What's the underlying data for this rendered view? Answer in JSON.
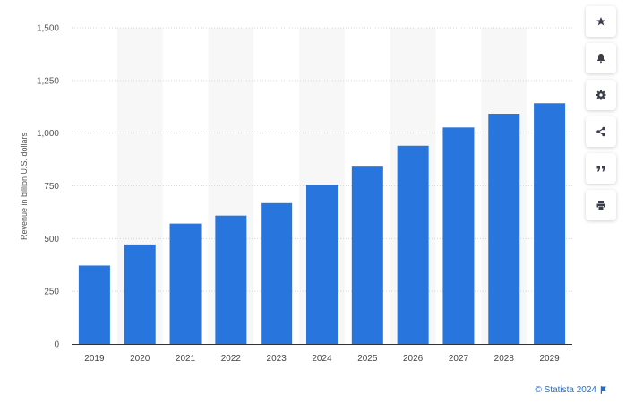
{
  "chart_data": {
    "type": "bar",
    "categories": [
      "2019",
      "2020",
      "2021",
      "2022",
      "2023",
      "2024",
      "2025",
      "2026",
      "2027",
      "2028",
      "2029"
    ],
    "values": [
      372,
      472,
      571,
      609,
      668,
      755,
      845,
      940,
      1027,
      1092,
      1142
    ],
    "title": "",
    "xlabel": "",
    "ylabel": "Revenue in billion U.S. dollars",
    "ylim": [
      0,
      1500
    ],
    "yticks": [
      0,
      250,
      500,
      750,
      1000,
      1250,
      1500
    ],
    "ytick_labels": [
      "0",
      "250",
      "500",
      "750",
      "1,000",
      "1,250",
      "1,500"
    ],
    "grid": true,
    "bar_color": "#2876dd",
    "band_color": "#f7f7f7"
  },
  "toolbar": {
    "buttons": [
      {
        "icon": "star-icon"
      },
      {
        "icon": "bell-icon"
      },
      {
        "icon": "gear-icon"
      },
      {
        "icon": "share-icon"
      },
      {
        "icon": "quote-icon"
      },
      {
        "icon": "print-icon"
      }
    ]
  },
  "credit": {
    "text": "© Statista 2024",
    "color": "#1f6fd1"
  }
}
